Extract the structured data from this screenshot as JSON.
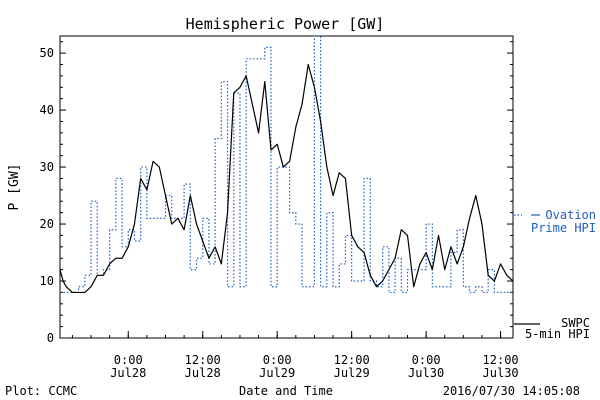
{
  "chart_data": {
    "type": "line",
    "title": "Hemispheric Power [GW]",
    "ylabel": "P [GW]",
    "xlabel": "Date and Time",
    "ylim": [
      0,
      53
    ],
    "xlim": [
      "2016-07-27 13:00",
      "2016-07-30 14:00"
    ],
    "yticks": [
      0,
      10,
      20,
      30,
      40,
      50
    ],
    "xticks": [
      {
        "time": "2016-07-28 00:00",
        "line1": "0:00",
        "line2": "Jul28"
      },
      {
        "time": "2016-07-28 12:00",
        "line1": "12:00",
        "line2": "Jul28"
      },
      {
        "time": "2016-07-29 00:00",
        "line1": "0:00",
        "line2": "Jul29"
      },
      {
        "time": "2016-07-29 12:00",
        "line1": "12:00",
        "line2": "Jul29"
      },
      {
        "time": "2016-07-30 00:00",
        "line1": "0:00",
        "line2": "Jul30"
      },
      {
        "time": "2016-07-30 12:00",
        "line1": "12:00",
        "line2": "Jul30"
      }
    ],
    "grid": false,
    "series": [
      {
        "name": "Ovation Prime HPI",
        "legend_lines": [
          "Ovation",
          "Prime HPI"
        ],
        "style": "dotted-step",
        "color": "#1f5fbf",
        "x": [
          "2016-07-27 13:00",
          "2016-07-27 14:00",
          "2016-07-27 16:00",
          "2016-07-27 17:00",
          "2016-07-27 18:00",
          "2016-07-27 19:00",
          "2016-07-27 20:00",
          "2016-07-27 21:00",
          "2016-07-27 22:00",
          "2016-07-27 23:00",
          "2016-07-28 00:00",
          "2016-07-28 01:00",
          "2016-07-28 02:00",
          "2016-07-28 03:00",
          "2016-07-28 04:00",
          "2016-07-28 05:00",
          "2016-07-28 06:00",
          "2016-07-28 07:00",
          "2016-07-28 09:00",
          "2016-07-28 10:00",
          "2016-07-28 11:00",
          "2016-07-28 12:00",
          "2016-07-28 13:00",
          "2016-07-28 14:00",
          "2016-07-28 15:00",
          "2016-07-28 16:00",
          "2016-07-28 17:00",
          "2016-07-28 18:00",
          "2016-07-28 19:00",
          "2016-07-28 20:00",
          "2016-07-28 21:00",
          "2016-07-28 22:00",
          "2016-07-28 23:00",
          "2016-07-29 00:00",
          "2016-07-29 02:00",
          "2016-07-29 03:00",
          "2016-07-29 04:00",
          "2016-07-29 05:00",
          "2016-07-29 06:00",
          "2016-07-29 07:00",
          "2016-07-29 08:00",
          "2016-07-29 09:00",
          "2016-07-29 10:00",
          "2016-07-29 11:00",
          "2016-07-29 12:00",
          "2016-07-29 13:00",
          "2016-07-29 14:00",
          "2016-07-29 15:00",
          "2016-07-29 16:00",
          "2016-07-29 17:00",
          "2016-07-29 18:00",
          "2016-07-29 19:00",
          "2016-07-29 20:00",
          "2016-07-29 21:00",
          "2016-07-29 22:00",
          "2016-07-29 23:00",
          "2016-07-30 00:00",
          "2016-07-30 01:00",
          "2016-07-30 04:00",
          "2016-07-30 05:00",
          "2016-07-30 06:00",
          "2016-07-30 07:00",
          "2016-07-30 08:00",
          "2016-07-30 09:00",
          "2016-07-30 10:00",
          "2016-07-30 11:00",
          "2016-07-30 12:00",
          "2016-07-30 13:00",
          "2016-07-30 14:00"
        ],
        "y": [
          8,
          8,
          9,
          11,
          24,
          11,
          12,
          19,
          28,
          16,
          19,
          17,
          30,
          21,
          21,
          21,
          25,
          21,
          27,
          12,
          14,
          21,
          13,
          35,
          45,
          9,
          43,
          9,
          49,
          49,
          49,
          51,
          9,
          30,
          22,
          20,
          9,
          9,
          53,
          9,
          22,
          9,
          13,
          18,
          10,
          10,
          28,
          10,
          9,
          16,
          8,
          14,
          8,
          12,
          12,
          12,
          20,
          9,
          15,
          19,
          9,
          8,
          9,
          8,
          12,
          8,
          8,
          8,
          8
        ]
      },
      {
        "name": "SWPC 5-min HPI",
        "legend_lines": [
          "SWPC",
          "5-min HPI"
        ],
        "style": "solid",
        "color": "#000000",
        "x": [
          "2016-07-27 13:00",
          "2016-07-27 13:30",
          "2016-07-27 14:00",
          "2016-07-27 15:00",
          "2016-07-27 16:00",
          "2016-07-27 17:00",
          "2016-07-27 18:00",
          "2016-07-27 19:00",
          "2016-07-27 20:00",
          "2016-07-27 21:00",
          "2016-07-27 22:00",
          "2016-07-27 23:00",
          "2016-07-28 00:00",
          "2016-07-28 01:00",
          "2016-07-28 02:00",
          "2016-07-28 03:00",
          "2016-07-28 04:00",
          "2016-07-28 05:00",
          "2016-07-28 06:00",
          "2016-07-28 07:00",
          "2016-07-28 08:00",
          "2016-07-28 09:00",
          "2016-07-28 10:00",
          "2016-07-28 11:00",
          "2016-07-28 12:00",
          "2016-07-28 13:00",
          "2016-07-28 14:00",
          "2016-07-28 15:00",
          "2016-07-28 16:00",
          "2016-07-28 17:00",
          "2016-07-28 18:00",
          "2016-07-28 19:00",
          "2016-07-28 20:00",
          "2016-07-28 21:00",
          "2016-07-28 22:00",
          "2016-07-28 23:00",
          "2016-07-29 00:00",
          "2016-07-29 01:00",
          "2016-07-29 02:00",
          "2016-07-29 03:00",
          "2016-07-29 04:00",
          "2016-07-29 05:00",
          "2016-07-29 06:00",
          "2016-07-29 07:00",
          "2016-07-29 08:00",
          "2016-07-29 09:00",
          "2016-07-29 10:00",
          "2016-07-29 11:00",
          "2016-07-29 12:00",
          "2016-07-29 13:00",
          "2016-07-29 14:00",
          "2016-07-29 15:00",
          "2016-07-29 16:00",
          "2016-07-29 17:00",
          "2016-07-29 18:00",
          "2016-07-29 19:00",
          "2016-07-29 20:00",
          "2016-07-29 21:00",
          "2016-07-29 22:00",
          "2016-07-29 23:00",
          "2016-07-30 00:00",
          "2016-07-30 01:00",
          "2016-07-30 02:00",
          "2016-07-30 03:00",
          "2016-07-30 04:00",
          "2016-07-30 05:00",
          "2016-07-30 06:00",
          "2016-07-30 07:00",
          "2016-07-30 08:00",
          "2016-07-30 09:00",
          "2016-07-30 10:00",
          "2016-07-30 11:00",
          "2016-07-30 12:00",
          "2016-07-30 13:00",
          "2016-07-30 14:00"
        ],
        "y": [
          12,
          10,
          9,
          8,
          8,
          8,
          9,
          11,
          11,
          13,
          14,
          14,
          16,
          20,
          28,
          26,
          31,
          30,
          25,
          20,
          21,
          19,
          25,
          20,
          17,
          14,
          16,
          13,
          22,
          43,
          44,
          46,
          41,
          36,
          45,
          33,
          34,
          30,
          31,
          37,
          41,
          48,
          44,
          38,
          30,
          25,
          29,
          28,
          18,
          16,
          15,
          11,
          9,
          10,
          12,
          14,
          19,
          18,
          9,
          13,
          15,
          12,
          18,
          12,
          16,
          13,
          16,
          21,
          25,
          20,
          11,
          10,
          13,
          11,
          10
        ]
      }
    ]
  },
  "footer": {
    "plot_label": "Plot: CCMC",
    "xlabel": "Date and Time",
    "timestamp": "2016/07/30 14:05:08"
  }
}
